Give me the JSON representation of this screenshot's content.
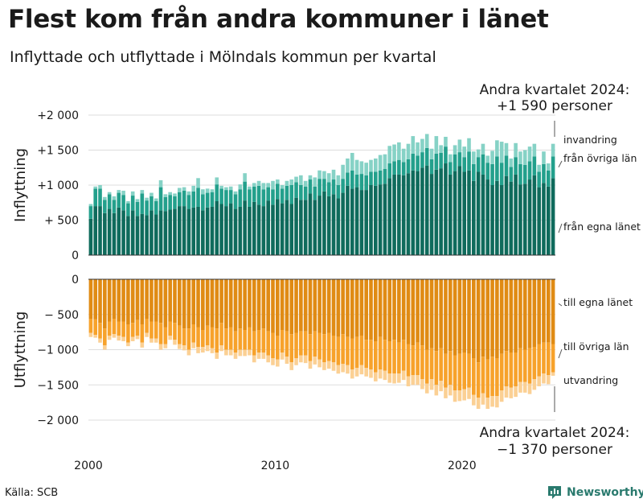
{
  "title": "Flest kom från andra kommuner i länet",
  "subtitle": "Inflyttade och utflyttade i Mölndals kommun per kvartal",
  "source": "Källa: SCB",
  "brand": "Newsworthy",
  "colors": {
    "in_lan": "#0f6b5c",
    "in_ovriga": "#23a08c",
    "in_invandring": "#86d2c6",
    "out_lan": "#e08b14",
    "out_ovriga": "#f7a22b",
    "out_utvandring": "#fbd094",
    "grid": "#dddddd",
    "text": "#1a1a1a"
  },
  "chart_data": {
    "type": "bar",
    "subtype": "stacked-diverging",
    "title": "Flest kom från andra kommuner i länet",
    "subtitle": "Inflyttade och utflyttade i Mölndals kommun per kvartal",
    "xlabel": "",
    "x_start": 2000,
    "x_step": 0.25,
    "x_ticks": [
      2000,
      2010,
      2020
    ],
    "x_tick_labels": [
      "2000",
      "2010",
      "2020"
    ],
    "panels": {
      "in": {
        "ylabel": "Inflyttning",
        "ylim": [
          0,
          2000
        ],
        "ticks": [
          0,
          500,
          1000,
          1500,
          2000
        ],
        "tick_labels": [
          "0",
          "+  500",
          "+1 000",
          "+1 500",
          "+2 000"
        ],
        "series_labels": [
          "från egna länet",
          "från övriga län",
          "invandring"
        ],
        "annotation": [
          "Andra kvartalet 2024:",
          "+1 590 personer"
        ]
      },
      "out": {
        "ylabel": "Utflyttning",
        "ylim": [
          -2000,
          0
        ],
        "ticks": [
          0,
          -500,
          -1000,
          -1500,
          -2000
        ],
        "tick_labels": [
          "0",
          "−  500",
          "−1 000",
          "−1 500",
          "−2 000"
        ],
        "series_labels": [
          "till egna länet",
          "till övriga län",
          "utvandring"
        ],
        "annotation": [
          "Andra kvartalet 2024:",
          "−1 370 personer"
        ]
      }
    },
    "series": [
      {
        "name": "från egna länet",
        "panel": "in",
        "values": [
          520,
          700,
          700,
          600,
          660,
          600,
          680,
          640,
          560,
          640,
          560,
          590,
          570,
          640,
          580,
          640,
          630,
          650,
          660,
          700,
          700,
          660,
          680,
          690,
          640,
          680,
          690,
          770,
          730,
          700,
          740,
          660,
          690,
          780,
          690,
          760,
          720,
          700,
          780,
          720,
          800,
          740,
          790,
          730,
          820,
          790,
          790,
          880,
          790,
          850,
          910,
          840,
          870,
          810,
          890,
          990,
          950,
          970,
          930,
          930,
          1000,
          990,
          1010,
          1020,
          1100,
          1150,
          1150,
          1140,
          1170,
          1210,
          1200,
          1250,
          1280,
          1160,
          1220,
          1240,
          1310,
          1150,
          1200,
          1270,
          1190,
          1210,
          1060,
          1190,
          1150,
          1080,
          1000,
          1060,
          1000,
          1130,
          1050,
          1150,
          1010,
          1020,
          1080,
          1140,
          970,
          1030,
          980,
          1100
        ]
      },
      {
        "name": "från övriga län",
        "panel": "in",
        "values": [
          180,
          250,
          250,
          190,
          210,
          190,
          210,
          220,
          180,
          210,
          200,
          290,
          210,
          200,
          190,
          330,
          200,
          210,
          180,
          200,
          220,
          200,
          230,
          270,
          230,
          210,
          210,
          240,
          220,
          230,
          190,
          210,
          250,
          270,
          250,
          220,
          270,
          240,
          190,
          220,
          220,
          210,
          200,
          270,
          220,
          210,
          190,
          200,
          190,
          240,
          180,
          200,
          210,
          190,
          200,
          190,
          260,
          180,
          230,
          210,
          190,
          200,
          200,
          210,
          210,
          190,
          210,
          190,
          200,
          240,
          220,
          220,
          250,
          210,
          230,
          220,
          240,
          180,
          240,
          200,
          210,
          270,
          240,
          210,
          290,
          240,
          300,
          350,
          320,
          290,
          210,
          250,
          290,
          270,
          260,
          270,
          220,
          270,
          230,
          310
        ]
      },
      {
        "name": "invandring",
        "panel": "in",
        "values": [
          30,
          30,
          50,
          40,
          30,
          50,
          40,
          60,
          30,
          60,
          40,
          50,
          40,
          50,
          40,
          100,
          40,
          40,
          40,
          60,
          50,
          50,
          80,
          140,
          70,
          60,
          40,
          100,
          40,
          40,
          50,
          40,
          70,
          120,
          40,
          50,
          70,
          90,
          60,
          120,
          60,
          50,
          70,
          80,
          80,
          140,
          80,
          60,
          130,
          120,
          110,
          130,
          140,
          140,
          200,
          200,
          250,
          210,
          180,
          180,
          170,
          190,
          220,
          210,
          250,
          240,
          250,
          190,
          220,
          250,
          190,
          190,
          200,
          150,
          250,
          110,
          140,
          110,
          130,
          180,
          150,
          190,
          180,
          110,
          150,
          100,
          190,
          230,
          300,
          180,
          120,
          200,
          180,
          210,
          210,
          180,
          100,
          180,
          100,
          180
        ]
      },
      {
        "name": "till egna länet",
        "panel": "out",
        "values": [
          -560,
          -570,
          -620,
          -700,
          -600,
          -560,
          -600,
          -600,
          -640,
          -620,
          -580,
          -640,
          -560,
          -600,
          -600,
          -620,
          -680,
          -600,
          -620,
          -660,
          -700,
          -700,
          -640,
          -680,
          -720,
          -660,
          -680,
          -700,
          -620,
          -700,
          -680,
          -740,
          -700,
          -720,
          -680,
          -740,
          -720,
          -700,
          -740,
          -760,
          -800,
          -720,
          -740,
          -780,
          -760,
          -740,
          -740,
          -780,
          -740,
          -760,
          -780,
          -760,
          -800,
          -820,
          -780,
          -820,
          -840,
          -820,
          -800,
          -860,
          -860,
          -880,
          -820,
          -860,
          -880,
          -860,
          -900,
          -860,
          -920,
          -940,
          -900,
          -940,
          -1000,
          -980,
          -1020,
          -980,
          -1060,
          -1020,
          -1080,
          -1060,
          -1040,
          -1060,
          -1120,
          -1180,
          -1100,
          -1140,
          -1100,
          -1120,
          -1060,
          -1020,
          -1040,
          -1040,
          -980,
          -1000,
          -980,
          -960,
          -920,
          -900,
          -900,
          -920
        ]
      },
      {
        "name": "till övriga län",
        "panel": "out",
        "values": [
          -200,
          -220,
          -220,
          -240,
          -200,
          -220,
          -200,
          -220,
          -260,
          -200,
          -220,
          -260,
          -200,
          -240,
          -240,
          -300,
          -240,
          -200,
          -240,
          -260,
          -240,
          -300,
          -260,
          -280,
          -240,
          -280,
          -300,
          -340,
          -320,
          -300,
          -320,
          -300,
          -300,
          -280,
          -320,
          -340,
          -320,
          -340,
          -340,
          -360,
          -340,
          -320,
          -360,
          -400,
          -360,
          -340,
          -340,
          -380,
          -360,
          -380,
          -400,
          -400,
          -380,
          -400,
          -420,
          -400,
          -440,
          -440,
          -420,
          -400,
          -420,
          -440,
          -460,
          -440,
          -460,
          -480,
          -440,
          -440,
          -460,
          -420,
          -460,
          -480,
          -480,
          -440,
          -480,
          -460,
          -480,
          -480,
          -500,
          -520,
          -520,
          -480,
          -520,
          -500,
          -520,
          -540,
          -560,
          -540,
          -520,
          -500,
          -500,
          -480,
          -480,
          -460,
          -500,
          -460,
          -460,
          -440,
          -460,
          -400
        ]
      },
      {
        "name": "utvandring",
        "panel": "out",
        "values": [
          -60,
          -40,
          -60,
          -60,
          -60,
          -50,
          -70,
          -60,
          -50,
          -60,
          -50,
          -70,
          -60,
          -60,
          -60,
          -80,
          -60,
          -60,
          -70,
          -70,
          -70,
          -80,
          -80,
          -90,
          -80,
          -80,
          -70,
          -90,
          -80,
          -80,
          -80,
          -90,
          -90,
          -90,
          -80,
          -100,
          -90,
          -90,
          -100,
          -100,
          -100,
          -100,
          -100,
          -110,
          -100,
          -100,
          -110,
          -110,
          -110,
          -110,
          -110,
          -110,
          -120,
          -120,
          -120,
          -120,
          -130,
          -120,
          -130,
          -120,
          -120,
          -130,
          -130,
          -130,
          -130,
          -140,
          -130,
          -130,
          -140,
          -140,
          -140,
          -140,
          -140,
          -150,
          -150,
          -150,
          -150,
          -150,
          -160,
          -150,
          -160,
          -160,
          -150,
          -160,
          -160,
          -160,
          -150,
          -160,
          -160,
          -160,
          -150,
          -150,
          -150,
          -150,
          -150,
          -150,
          -140,
          -140,
          -130,
          -50
        ]
      }
    ]
  }
}
